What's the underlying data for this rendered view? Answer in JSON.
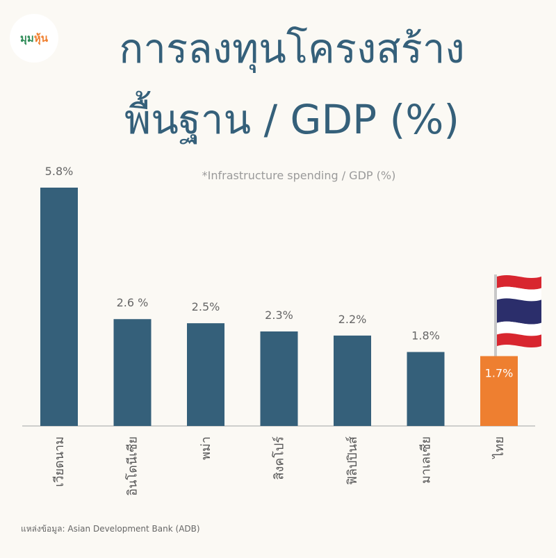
{
  "logo": {
    "text_main": "มุม",
    "text_accent": "หุ้น"
  },
  "header": {
    "title_line1": "การลงทุนโครงสร้าง",
    "title_line2": "พื้นฐาน / GDP (%)",
    "subtitle": "*Infrastructure spending / GDP (%)"
  },
  "source": "แหล่งข้อมูล: Asian Development Bank (ADB)",
  "colors": {
    "bar": "#35607a",
    "highlight": "#ee7f30",
    "title": "#35607a"
  },
  "chart_data": {
    "type": "bar",
    "title": "การลงทุนโครงสร้างพื้นฐาน / GDP (%)",
    "subtitle": "*Infrastructure spending / GDP (%)",
    "categories": [
      "เวียดนาม",
      "อินโดนีเซีย",
      "พม่า",
      "สิงคโปร์",
      "ฟิลิปปินส์",
      "มาเลเซีย",
      "ไทย"
    ],
    "values": [
      5.8,
      2.6,
      2.5,
      2.3,
      2.2,
      1.8,
      1.7
    ],
    "labels": [
      "5.8%",
      "2.6 %",
      "2.5%",
      "2.3%",
      "2.2%",
      "1.8%",
      "1.7%"
    ],
    "highlight_index": 6,
    "highlight_icon": "thai-flag-icon",
    "ylim": [
      0,
      5.8
    ],
    "grid": false,
    "legend": false
  }
}
